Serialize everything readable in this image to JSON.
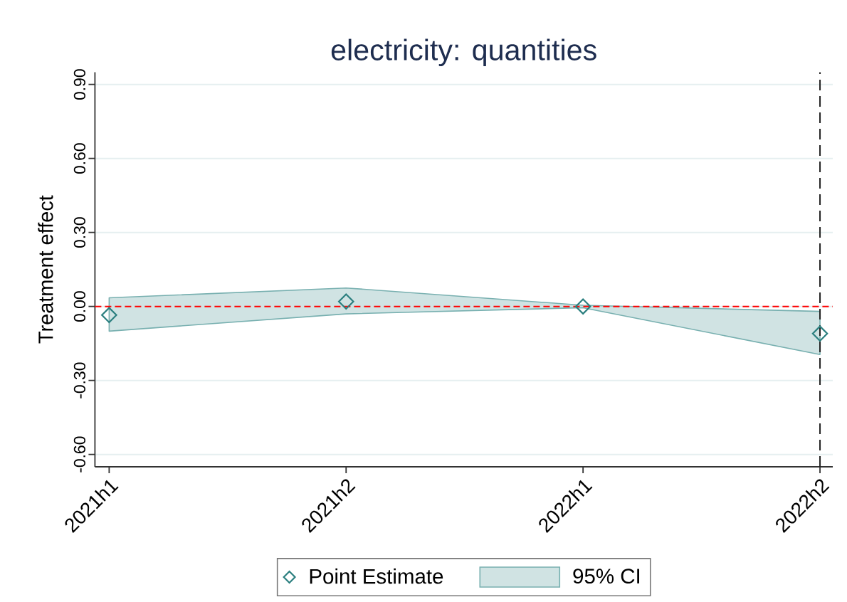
{
  "chart_data": {
    "type": "scatter",
    "title": "electricity: quantities",
    "ylabel": "Treatment effect",
    "categories": [
      "2021h1",
      "2021h2",
      "2022h1",
      "2022h2"
    ],
    "series": [
      {
        "name": "Point Estimate",
        "color": "#2b7f7f",
        "values": [
          -0.035,
          0.02,
          0.0,
          -0.11
        ]
      },
      {
        "name": "95% CI",
        "type": "area",
        "color": "#d0e3e3",
        "values": [
          null,
          null,
          null,
          null
        ],
        "lower": [
          -0.1,
          -0.03,
          -0.005,
          -0.195
        ],
        "upper": [
          0.035,
          0.075,
          0.005,
          -0.02
        ]
      }
    ],
    "marker": "diamond",
    "ylim": [
      -0.65,
      0.95
    ],
    "yticks": [
      {
        "value": -0.6,
        "label": "-0.60"
      },
      {
        "value": -0.3,
        "label": "-0.30"
      },
      {
        "value": 0,
        "label": "0.00"
      },
      {
        "value": 0.3,
        "label": "0.30"
      },
      {
        "value": 0.6,
        "label": "0.60"
      },
      {
        "value": 0.9,
        "label": "0.90"
      }
    ],
    "grid": "y",
    "legend": "bottom",
    "ref_lines": [
      {
        "axis": "y",
        "value": 0,
        "color": "#ff0000",
        "line_style": "dashed"
      },
      {
        "axis": "x",
        "value": "2022h2",
        "color": "#222222",
        "line_style": "dashed"
      }
    ]
  }
}
